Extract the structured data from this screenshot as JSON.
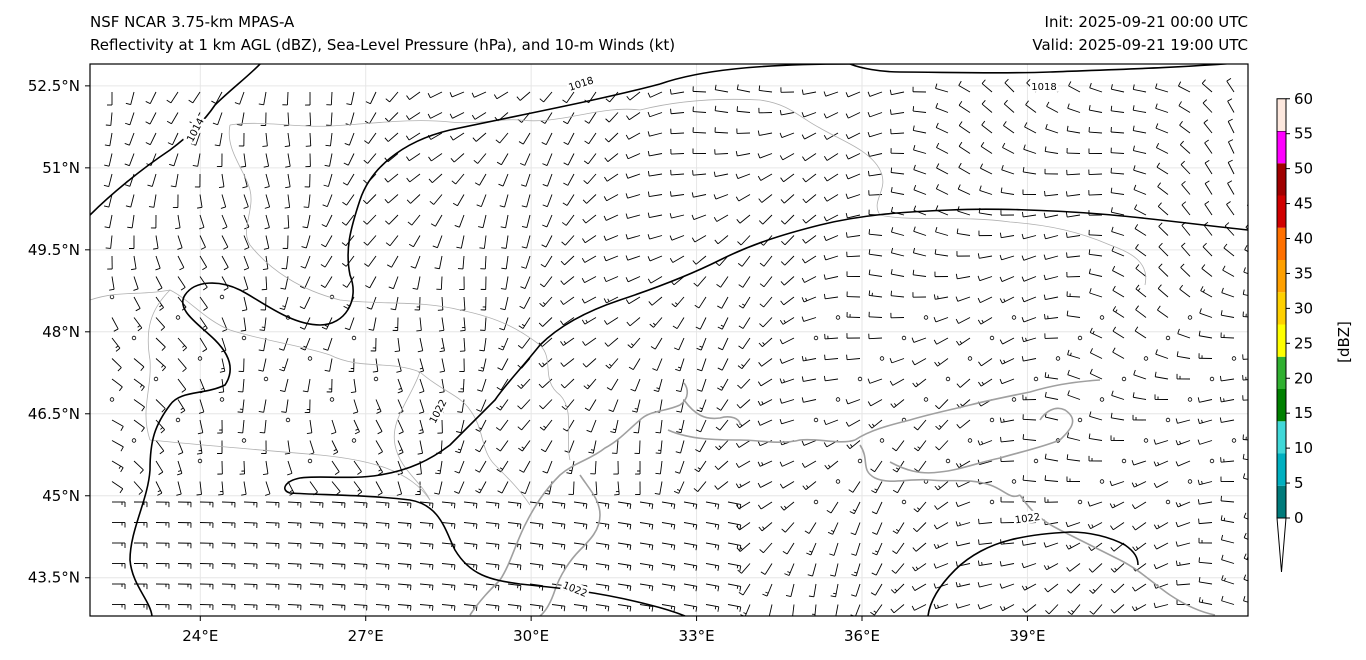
{
  "header": {
    "title_left_line1": "NSF NCAR 3.75-km MPAS-A",
    "title_left_line2": "Reflectivity at 1 km AGL (dBZ), Sea-Level Pressure (hPa), and 10-m Winds (kt)",
    "title_right_line1": "Init: 2025-09-21 00:00 UTC",
    "title_right_line2": "Valid: 2025-09-21 19:00 UTC"
  },
  "map": {
    "lon_range": [
      22,
      43
    ],
    "lat_range": [
      42.8,
      52.9
    ],
    "lon_ticks": [
      {
        "value": 24,
        "label": "24°E"
      },
      {
        "value": 27,
        "label": "27°E"
      },
      {
        "value": 30,
        "label": "30°E"
      },
      {
        "value": 33,
        "label": "33°E"
      },
      {
        "value": 36,
        "label": "36°E"
      },
      {
        "value": 39,
        "label": "39°E"
      }
    ],
    "lat_ticks": [
      {
        "value": 52.5,
        "label": "52.5°N"
      },
      {
        "value": 51,
        "label": "51°N"
      },
      {
        "value": 49.5,
        "label": "49.5°N"
      },
      {
        "value": 48,
        "label": "48°N"
      },
      {
        "value": 46.5,
        "label": "46.5°N"
      },
      {
        "value": 45,
        "label": "45°N"
      },
      {
        "value": 43.5,
        "label": "43.5°N"
      }
    ],
    "isobar_labels": [
      {
        "text": "1018",
        "lon": 30.9,
        "lat": 52.55,
        "angle": -18
      },
      {
        "text": "1018",
        "lon": 39.3,
        "lat": 52.5,
        "angle": 0
      },
      {
        "text": "1014",
        "lon": 23.9,
        "lat": 51.7,
        "angle": -62
      },
      {
        "text": "1022",
        "lon": 28.3,
        "lat": 46.55,
        "angle": -62
      },
      {
        "text": "1022",
        "lon": 30.8,
        "lat": 43.3,
        "angle": 22
      },
      {
        "text": "1022",
        "lon": 39.0,
        "lat": 44.6,
        "angle": -8
      }
    ]
  },
  "colorbar": {
    "label": "[dBZ]",
    "ticks": [
      "0",
      "5",
      "10",
      "15",
      "20",
      "25",
      "30",
      "35",
      "40",
      "45",
      "50",
      "55",
      "60"
    ],
    "colors": [
      "#007b7b",
      "#00b0c0",
      "#40d8d8",
      "#008000",
      "#30b030",
      "#ffff00",
      "#ffd000",
      "#ffa000",
      "#ff7000",
      "#d00000",
      "#a00000",
      "#ff00ff"
    ],
    "over_color": "#fde8de",
    "under_color": "#ffffff"
  }
}
